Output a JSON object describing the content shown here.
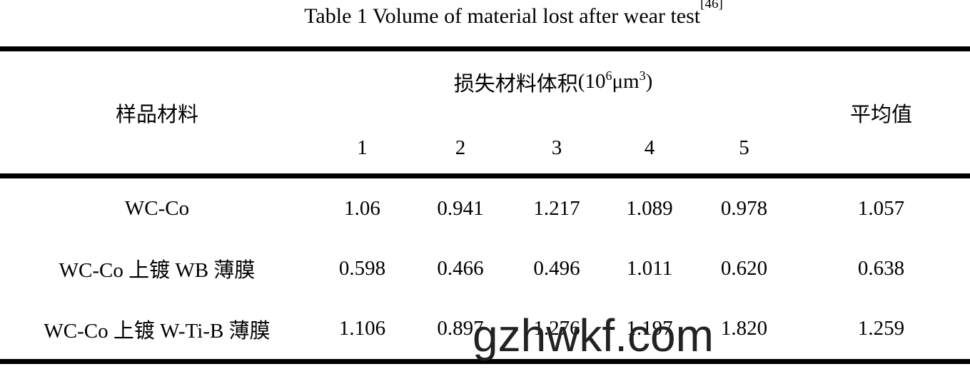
{
  "title": {
    "text": "Table 1 Volume of material lost after wear test",
    "reference": "[46]"
  },
  "table": {
    "header": {
      "sample_label": "样品材料",
      "volume_label": "损失材料体积",
      "unit": {
        "open_base": " (10",
        "exponent": "6",
        "micrometer": " μm",
        "cube": "3",
        "close_paren": ")"
      },
      "trials": [
        "1",
        "2",
        "3",
        "4",
        "5"
      ],
      "average_label": "平均值"
    },
    "rows": [
      {
        "sample": "WC-Co",
        "values": [
          "1.06",
          "0.941",
          "1.217",
          "1.089",
          "0.978"
        ],
        "average": "1.057"
      },
      {
        "sample": "WC-Co 上镀 WB 薄膜",
        "values": [
          "0.598",
          "0.466",
          "0.496",
          "1.011",
          "0.620"
        ],
        "average": "0.638"
      },
      {
        "sample": "WC-Co 上镀 W-Ti-B 薄膜",
        "values": [
          "1.106",
          "0.897",
          "1.276",
          "1.197",
          "1.820"
        ],
        "average": "1.259"
      }
    ]
  },
  "watermark": {
    "text": "gzhwkf.com",
    "color": "#222222"
  },
  "colors": {
    "rule": "#000000",
    "text": "#000000",
    "background": "#ffffff"
  },
  "chart_data": {
    "type": "table",
    "title": "Table 1 Volume of material lost after wear test[46]",
    "columns": [
      "样品材料",
      "1",
      "2",
      "3",
      "4",
      "5",
      "平均值"
    ],
    "group_header": "损失材料体积 (10^6 μm^3)",
    "rows": [
      [
        "WC-Co",
        1.06,
        0.941,
        1.217,
        1.089,
        0.978,
        1.057
      ],
      [
        "WC-Co 上镀 WB 薄膜",
        0.598,
        0.466,
        0.496,
        1.011,
        0.62,
        0.638
      ],
      [
        "WC-Co 上镀 W-Ti-B 薄膜",
        1.106,
        0.897,
        1.276,
        1.197,
        1.82,
        1.259
      ]
    ]
  }
}
